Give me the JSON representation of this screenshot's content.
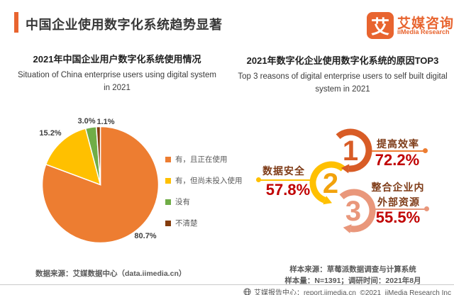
{
  "header": {
    "title": "中国企业使用数字化系统趋势显著",
    "logo": {
      "glyph": "艾",
      "brand_cn": "艾媒咨询",
      "brand_en": "iiMedia Research",
      "color": "#E8642F"
    }
  },
  "left_section": {
    "title_cn": "2021年中国企业用户数字化系统使用情况",
    "title_en_line1": "Situation of China enterprise users using digital system",
    "title_en_line2": "in 2021",
    "source_note": "数据来源：艾媒数据中心（data.iimedia.cn）"
  },
  "right_section": {
    "title_cn": "2021年数字化企业使用数字化系统的原因TOP3",
    "title_en_line1": "Top 3 reasons of digital enterprise users to self built digital",
    "title_en_line2": "system in 2021",
    "items": [
      {
        "rank": "1",
        "label": "提高效率",
        "value": "72.2%",
        "ring_color": "#D85C26",
        "num_color": "#D85C26",
        "line_color": "#ED7D31"
      },
      {
        "rank": "2",
        "label": "数据安全",
        "value": "57.8%",
        "ring_color": "#FFC000",
        "num_color": "#F2A20C",
        "line_color": "#FFC000"
      },
      {
        "rank": "3",
        "label": "整合企业内",
        "label_line2": "外部资源",
        "value": "55.5%",
        "ring_color": "#E9977B",
        "num_color": "#E9977B",
        "line_color": "#E9977B"
      }
    ],
    "sample_note_line1": "样本来源：草莓派数据调查与计算系统",
    "sample_note_line2": "样本量：N=1391；调研时间：2021年8月"
  },
  "footer": {
    "text": "艾媒报告中心：report.iimedia.cn  ©2021  iiMedia Research Inc"
  },
  "chart_data": [
    {
      "type": "pie",
      "title": "2021年中国企业用户数字化系统使用情况",
      "title_en": "Situation of China enterprise users using digital system in 2021",
      "categories": [
        "有，且正在使用",
        "有，但尚未投入使用",
        "没有",
        "不清楚"
      ],
      "values": [
        80.7,
        15.2,
        3.0,
        1.1
      ],
      "unit": "%",
      "colors": [
        "#ED7D31",
        "#FFC000",
        "#70AD47",
        "#843C0C"
      ],
      "start_angle": "top, clockwise",
      "legend_position": "right"
    },
    {
      "type": "bar",
      "title": "2021年数字化企业使用数字化系统的原因TOP3",
      "title_en": "Top 3 reasons of digital enterprise users to self built digital system in 2021",
      "categories": [
        "提高效率",
        "数据安全",
        "整合企业内外部资源"
      ],
      "values": [
        72.2,
        57.8,
        55.5
      ],
      "unit": "%",
      "ranks": [
        1,
        2,
        3
      ]
    }
  ]
}
